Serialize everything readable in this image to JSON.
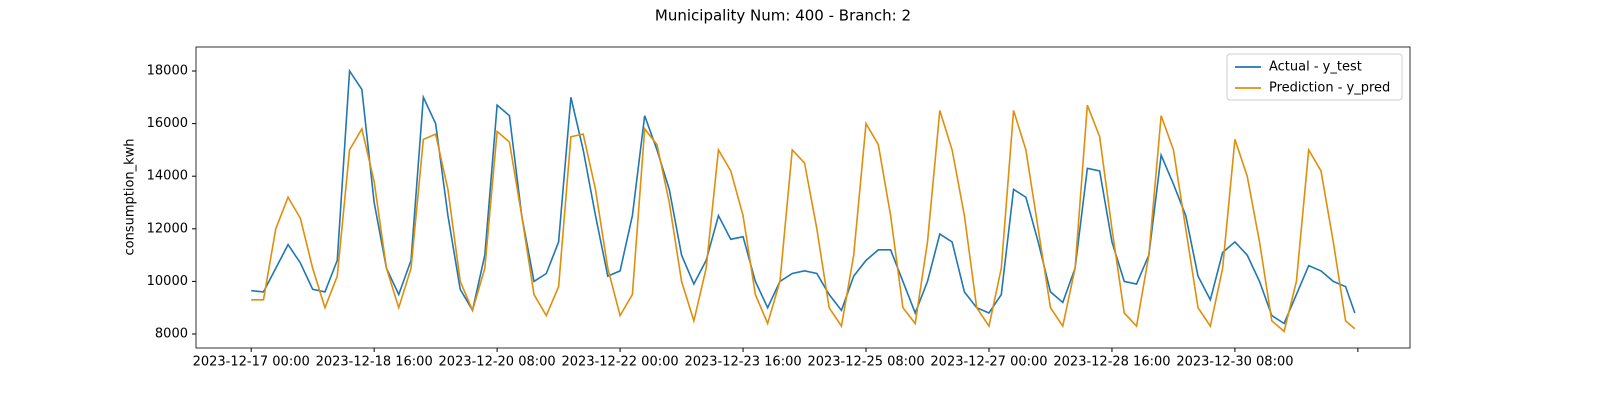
{
  "chart_data": {
    "type": "line",
    "title": "Municipality Num: 400 - Branch: 2",
    "ylabel": "consumption_kwh",
    "x": [
      "2023-12-17 00:00",
      "2023-12-17 04:00",
      "2023-12-17 08:00",
      "2023-12-17 12:00",
      "2023-12-17 16:00",
      "2023-12-17 20:00",
      "2023-12-18 00:00",
      "2023-12-18 04:00",
      "2023-12-18 08:00",
      "2023-12-18 12:00",
      "2023-12-18 16:00",
      "2023-12-18 20:00",
      "2023-12-19 00:00",
      "2023-12-19 04:00",
      "2023-12-19 08:00",
      "2023-12-19 12:00",
      "2023-12-19 16:00",
      "2023-12-19 20:00",
      "2023-12-20 00:00",
      "2023-12-20 04:00",
      "2023-12-20 08:00",
      "2023-12-20 12:00",
      "2023-12-20 16:00",
      "2023-12-20 20:00",
      "2023-12-21 00:00",
      "2023-12-21 04:00",
      "2023-12-21 08:00",
      "2023-12-21 12:00",
      "2023-12-21 16:00",
      "2023-12-21 20:00",
      "2023-12-22 00:00",
      "2023-12-22 04:00",
      "2023-12-22 08:00",
      "2023-12-22 12:00",
      "2023-12-22 16:00",
      "2023-12-22 20:00",
      "2023-12-23 00:00",
      "2023-12-23 04:00",
      "2023-12-23 08:00",
      "2023-12-23 12:00",
      "2023-12-23 16:00",
      "2023-12-23 20:00",
      "2023-12-24 00:00",
      "2023-12-24 04:00",
      "2023-12-24 08:00",
      "2023-12-24 12:00",
      "2023-12-24 16:00",
      "2023-12-24 20:00",
      "2023-12-25 00:00",
      "2023-12-25 04:00",
      "2023-12-25 08:00",
      "2023-12-25 12:00",
      "2023-12-25 16:00",
      "2023-12-25 20:00",
      "2023-12-26 00:00",
      "2023-12-26 04:00",
      "2023-12-26 08:00",
      "2023-12-26 12:00",
      "2023-12-26 16:00",
      "2023-12-26 20:00",
      "2023-12-27 00:00",
      "2023-12-27 04:00",
      "2023-12-27 08:00",
      "2023-12-27 12:00",
      "2023-12-27 16:00",
      "2023-12-27 20:00",
      "2023-12-28 00:00",
      "2023-12-28 04:00",
      "2023-12-28 08:00",
      "2023-12-28 12:00",
      "2023-12-28 16:00",
      "2023-12-28 20:00",
      "2023-12-29 00:00",
      "2023-12-29 04:00",
      "2023-12-29 08:00",
      "2023-12-29 12:00",
      "2023-12-29 16:00",
      "2023-12-29 20:00",
      "2023-12-30 00:00",
      "2023-12-30 04:00",
      "2023-12-30 08:00",
      "2023-12-30 12:00",
      "2023-12-30 16:00",
      "2023-12-30 20:00",
      "2023-12-31 00:00",
      "2023-12-31 04:00",
      "2023-12-31 08:00",
      "2023-12-31 12:00",
      "2023-12-31 16:00",
      "2023-12-31 20:00",
      "2023-12-31 23:00"
    ],
    "series": [
      {
        "name": "Actual - y_test",
        "color": "#1f77b4",
        "values": [
          9650,
          9600,
          10500,
          11400,
          10700,
          9700,
          9600,
          10800,
          18000,
          17300,
          13000,
          10500,
          9500,
          10800,
          17000,
          16000,
          12500,
          9700,
          8900,
          11000,
          16700,
          16300,
          12500,
          10000,
          10300,
          11500,
          17000,
          15000,
          12500,
          10200,
          10400,
          12500,
          16300,
          15000,
          13500,
          11000,
          9900,
          10800,
          12500,
          11600,
          11700,
          10000,
          9000,
          10000,
          10300,
          10400,
          10300,
          9500,
          8900,
          10200,
          10800,
          11200,
          11200,
          10000,
          8800,
          10000,
          11800,
          11500,
          9600,
          9000,
          8800,
          9500,
          13500,
          13200,
          11500,
          9600,
          9200,
          10500,
          14300,
          14200,
          11500,
          10000,
          9900,
          11000,
          14800,
          13700,
          12500,
          10200,
          9300,
          11100,
          11500,
          11000,
          10000,
          8700,
          8400,
          9500,
          10600,
          10400,
          10000,
          9800,
          8800
        ]
      },
      {
        "name": "Prediction - y_pred",
        "color": "#e08e0b",
        "values": [
          9300,
          9300,
          12000,
          13200,
          12400,
          10500,
          9000,
          10200,
          15000,
          15800,
          13800,
          10500,
          9000,
          10500,
          15400,
          15600,
          13500,
          10000,
          8900,
          10500,
          15700,
          15300,
          12500,
          9500,
          8700,
          9800,
          15500,
          15600,
          13500,
          10500,
          8700,
          9500,
          15800,
          15200,
          13000,
          10000,
          8500,
          10500,
          15000,
          14200,
          12500,
          9500,
          8400,
          10000,
          15000,
          14500,
          12000,
          9000,
          8300,
          11000,
          16000,
          15200,
          12500,
          9000,
          8400,
          11500,
          16500,
          15000,
          12500,
          9000,
          8300,
          10500,
          16500,
          15000,
          12000,
          9000,
          8300,
          10500,
          16700,
          15500,
          12000,
          8800,
          8300,
          11000,
          16300,
          15000,
          12000,
          9000,
          8300,
          10500,
          15400,
          14000,
          11500,
          8500,
          8100,
          10000,
          15000,
          14200,
          11500,
          8500,
          8200
        ]
      }
    ],
    "xlim": [
      "2023-12-16 06:03",
      "2024-01-01 16:57"
    ],
    "xticks": [
      "2023-12-17 00:00",
      "2023-12-18 16:00",
      "2023-12-20 08:00",
      "2023-12-22 00:00",
      "2023-12-23 16:00",
      "2023-12-25 08:00",
      "2023-12-27 00:00",
      "2023-12-28 16:00",
      "2023-12-30 08:00",
      {
        "value": "2024-01-01 00:00"
      }
    ],
    "ylim": [
      7468,
      18912
    ],
    "yticks": [
      8000,
      10000,
      12000,
      14000,
      16000,
      18000
    ],
    "legend": "upper right"
  }
}
